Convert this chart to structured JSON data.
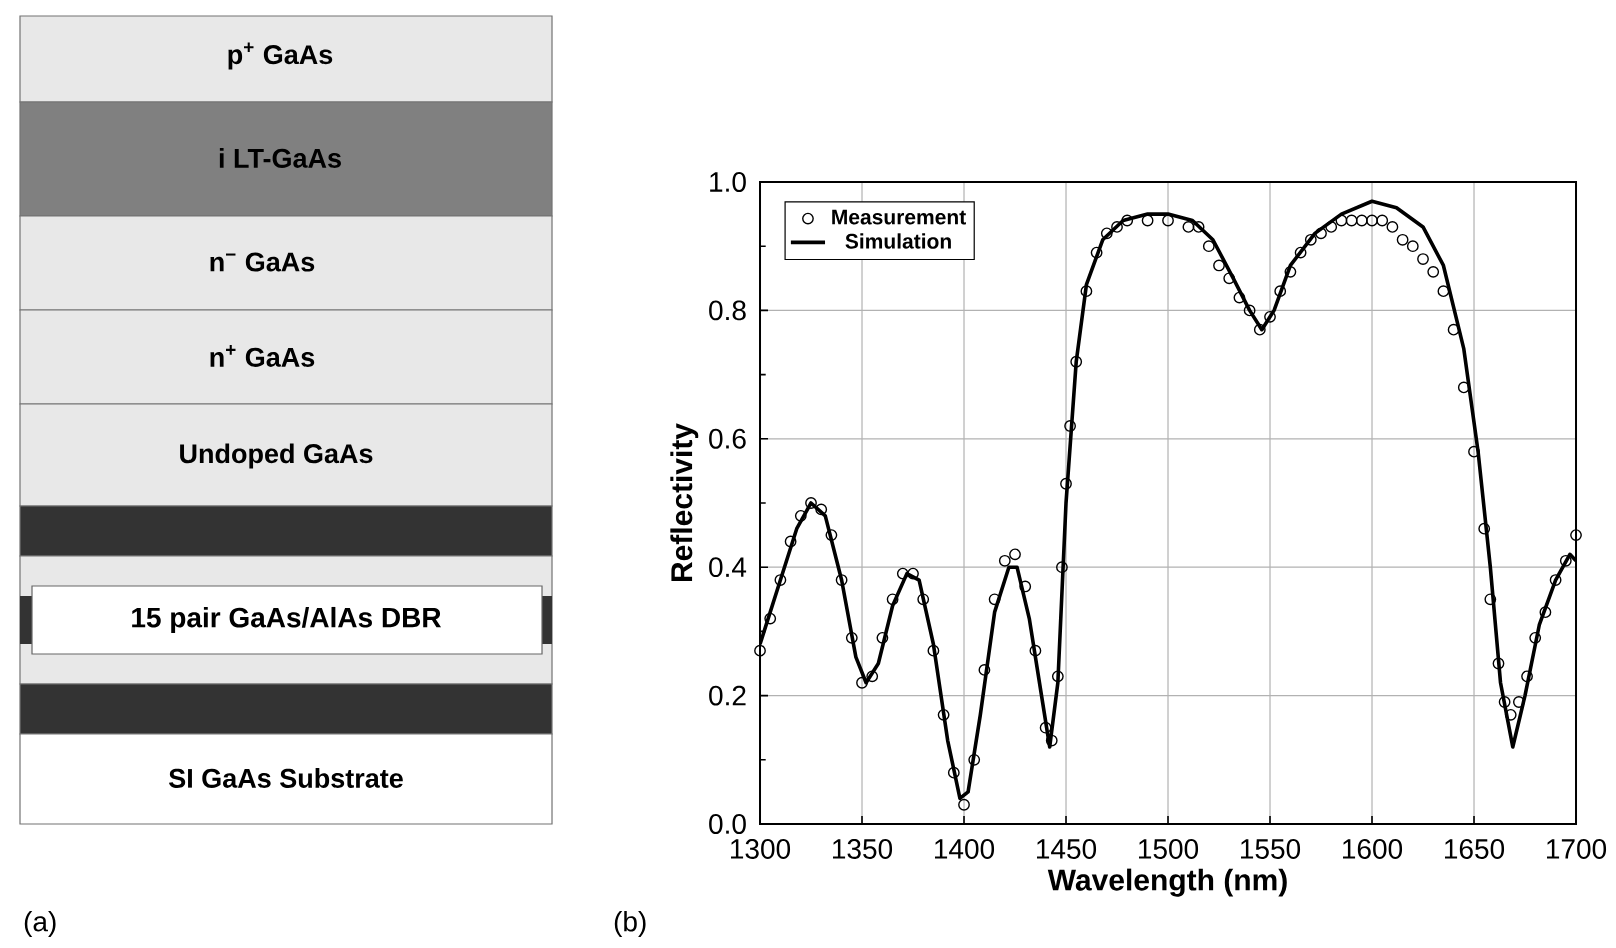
{
  "chart_data": [
    {
      "type": "other",
      "annotations": [
        "p$^{+}$ GaAs",
        "i LT-GaAs",
        "n$^{−}$ GaAs",
        "n$^{+}$ GaAs",
        "Undoped GaAs",
        "15 pair GaAs/AlAs DBR",
        "SI GaAs Substrate",
        "(a)"
      ]
    },
    {
      "type": "line",
      "xlabel": "Wavelength (nm)",
      "ylabel": "Reflectivity",
      "annotations": [
        "(b)"
      ],
      "xlim": [
        1300,
        1700
      ],
      "ylim": [
        0,
        1
      ],
      "xticks": [
        1300,
        1350,
        1400,
        1450,
        1500,
        1550,
        1600,
        1650,
        1700
      ],
      "yticks": [
        {
          "value": 0,
          "label": "0.0"
        },
        {
          "value": 0.2,
          "label": "0.2"
        },
        {
          "value": 0.4,
          "label": "0.4"
        },
        {
          "value": 0.6,
          "label": "0.6"
        },
        {
          "value": 0.8,
          "label": "0.8"
        },
        {
          "value": 1,
          "label": "1.0"
        }
      ],
      "grid": true,
      "legend": "top left",
      "series": [
        {
          "name": "Measurement",
          "type": "scatter",
          "marker": "circle",
          "color": "#000000",
          "x": [
            1300,
            1305,
            1310,
            1315,
            1320,
            1325,
            1330,
            1335,
            1340,
            1345,
            1350,
            1355,
            1360,
            1365,
            1370,
            1375,
            1380,
            1385,
            1390,
            1395,
            1400,
            1405,
            1410,
            1415,
            1420,
            1425,
            1430,
            1435,
            1440,
            1443,
            1446,
            1448,
            1450,
            1452,
            1455,
            1460,
            1465,
            1470,
            1475,
            1480,
            1490,
            1500,
            1510,
            1515,
            1520,
            1525,
            1530,
            1535,
            1540,
            1545,
            1550,
            1555,
            1560,
            1565,
            1570,
            1575,
            1580,
            1585,
            1590,
            1595,
            1600,
            1605,
            1610,
            1615,
            1620,
            1625,
            1630,
            1635,
            1640,
            1645,
            1650,
            1655,
            1658,
            1662,
            1665,
            1668,
            1672,
            1676,
            1680,
            1685,
            1690,
            1695,
            1700
          ],
          "values": [
            0.27,
            0.32,
            0.38,
            0.44,
            0.48,
            0.5,
            0.49,
            0.45,
            0.38,
            0.29,
            0.22,
            0.23,
            0.29,
            0.35,
            0.39,
            0.39,
            0.35,
            0.27,
            0.17,
            0.08,
            0.03,
            0.1,
            0.24,
            0.35,
            0.41,
            0.42,
            0.37,
            0.27,
            0.15,
            0.13,
            0.23,
            0.4,
            0.53,
            0.62,
            0.72,
            0.83,
            0.89,
            0.92,
            0.93,
            0.94,
            0.94,
            0.94,
            0.93,
            0.93,
            0.9,
            0.87,
            0.85,
            0.82,
            0.8,
            0.77,
            0.79,
            0.83,
            0.86,
            0.89,
            0.91,
            0.92,
            0.93,
            0.94,
            0.94,
            0.94,
            0.94,
            0.94,
            0.93,
            0.91,
            0.9,
            0.88,
            0.86,
            0.83,
            0.77,
            0.68,
            0.58,
            0.46,
            0.35,
            0.25,
            0.19,
            0.17,
            0.19,
            0.23,
            0.29,
            0.33,
            0.38,
            0.41,
            0.45
          ]
        },
        {
          "name": "Simulation",
          "type": "line",
          "marker": "none",
          "line_style": "solid",
          "color": "#000000",
          "x": [
            1300,
            1310,
            1318,
            1325,
            1332,
            1340,
            1347,
            1352,
            1358,
            1365,
            1372,
            1378,
            1385,
            1392,
            1398,
            1402,
            1408,
            1415,
            1422,
            1426,
            1432,
            1438,
            1442,
            1446,
            1450,
            1455,
            1460,
            1468,
            1478,
            1490,
            1500,
            1512,
            1522,
            1532,
            1540,
            1546,
            1552,
            1560,
            1572,
            1585,
            1600,
            1612,
            1625,
            1635,
            1645,
            1652,
            1658,
            1663,
            1669,
            1675,
            1682,
            1690,
            1697,
            1700
          ],
          "values": [
            0.28,
            0.38,
            0.46,
            0.5,
            0.48,
            0.38,
            0.26,
            0.22,
            0.25,
            0.34,
            0.39,
            0.38,
            0.28,
            0.13,
            0.04,
            0.05,
            0.17,
            0.33,
            0.4,
            0.4,
            0.32,
            0.2,
            0.12,
            0.22,
            0.5,
            0.72,
            0.84,
            0.91,
            0.94,
            0.95,
            0.95,
            0.94,
            0.91,
            0.85,
            0.8,
            0.77,
            0.8,
            0.87,
            0.92,
            0.95,
            0.97,
            0.96,
            0.93,
            0.87,
            0.74,
            0.58,
            0.4,
            0.22,
            0.12,
            0.2,
            0.31,
            0.38,
            0.42,
            0.41
          ]
        }
      ]
    }
  ]
}
